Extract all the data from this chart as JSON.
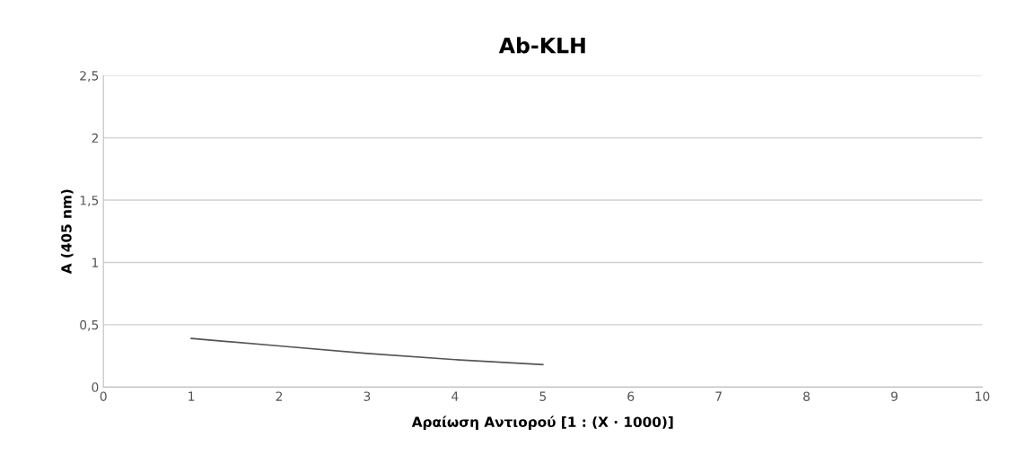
{
  "chart_data": {
    "type": "line",
    "title": "Ab-KLH",
    "xlabel": "Αραίωση Αντιορού [1 : (X · 1000)]",
    "ylabel": "A (405 nm)",
    "x": [
      1,
      2,
      3,
      4,
      5
    ],
    "series": [
      {
        "color": "#555555",
        "values": [
          0.39,
          0.33,
          0.27,
          0.22,
          0.18
        ]
      }
    ],
    "xlim": [
      0,
      10
    ],
    "xticks": [
      0,
      1,
      2,
      3,
      4,
      5,
      6,
      7,
      8,
      9,
      10
    ],
    "ylim": [
      0,
      2.5
    ],
    "yticks": [
      0,
      {
        "value": 0.5,
        "label": "0,5"
      },
      1,
      {
        "value": 1.5,
        "label": "1,5"
      },
      2,
      {
        "value": 2.5,
        "label": "2,5"
      }
    ],
    "grid": "y",
    "marker": "none",
    "line_style": "solid"
  }
}
